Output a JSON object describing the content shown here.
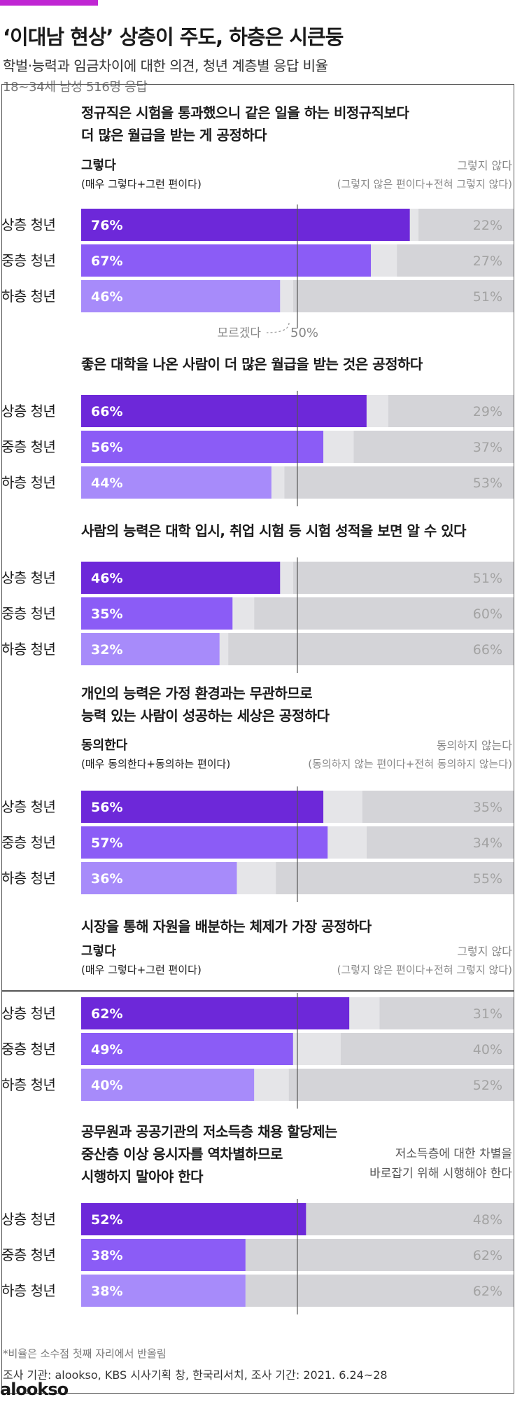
{
  "header": {
    "title": "‘이대남 현상’ 상층이 주도, 하층은 시큰둥",
    "subtitle": "학벌·능력과 임금차이에 대한 의견, 청년 계층별 응답 비율",
    "sample": "18~34세 남성 516명 응답"
  },
  "footer": {
    "note": "*비율은 소수점 첫째 자리에서 반올림",
    "source": "조사 기관: alookso, KBS 시사기획 창, 한국리서치, 조사 기간: 2021. 6.24~28",
    "logo": "alookso"
  },
  "colors": {
    "upper": "#6d28d9",
    "middle": "#8b5cf6",
    "lower": "#a78bfa",
    "unknown": "#e5e5e8",
    "disagree": "#d4d4d8",
    "disagree_text": "#a3a3a3",
    "marker": "#555555"
  },
  "chart_data": {
    "type": "bar",
    "orientation": "horizontal-stacked",
    "scale": [
      0,
      100
    ],
    "midline": 50,
    "categories": [
      "상층 청년",
      "중층 청년",
      "하층 청년"
    ],
    "panels": [
      {
        "question": [
          "정규직은 시험을 통과했으니 같은 일을 하는 비정규직보다",
          "더 많은 월급을 받는 게 공정하다"
        ],
        "left_label": [
          "그렇다",
          "(매우 그렇다+그런 편이다)"
        ],
        "right_label": [
          "그렇지 않다",
          "(그렇지 않은 편이다+전혀 그렇지 않다)"
        ],
        "agree": [
          76,
          67,
          46
        ],
        "disagree": [
          22,
          27,
          51
        ],
        "agree_labels": [
          "76%",
          "67%",
          "46%"
        ],
        "disagree_labels": [
          "22%",
          "27%",
          "51%"
        ],
        "annotation": {
          "unknown": "모르겠다",
          "midline": "50%"
        }
      },
      {
        "question": [
          "좋은 대학을 나온 사람이 더 많은 월급을 받는 것은 공정하다"
        ],
        "agree": [
          66,
          56,
          44
        ],
        "disagree": [
          29,
          37,
          53
        ],
        "agree_labels": [
          "66%",
          "56%",
          "44%"
        ],
        "disagree_labels": [
          "29%",
          "37%",
          "53%"
        ]
      },
      {
        "question": [
          "사람의 능력은 대학 입시, 취업 시험 등 시험 성적을 보면 알 수 있다"
        ],
        "agree": [
          46,
          35,
          32
        ],
        "disagree": [
          51,
          60,
          66
        ],
        "agree_labels": [
          "46%",
          "35%",
          "32%"
        ],
        "disagree_labels": [
          "51%",
          "60%",
          "66%"
        ]
      },
      {
        "question": [
          "개인의 능력은 가정 환경과는 무관하므로",
          "능력 있는 사람이 성공하는 세상은 공정하다"
        ],
        "left_label": [
          "동의한다",
          "(매우 동의한다+동의하는 편이다)"
        ],
        "right_label": [
          "동의하지 않는다",
          "(동의하지 않는 편이다+전혀 동의하지 않는다)"
        ],
        "agree": [
          56,
          57,
          36
        ],
        "disagree": [
          35,
          34,
          55
        ],
        "agree_labels": [
          "56%",
          "57%",
          "36%"
        ],
        "disagree_labels": [
          "35%",
          "34%",
          "55%"
        ]
      },
      {
        "question": [
          "시장을 통해 자원을 배분하는 체제가 가장 공정하다"
        ],
        "left_label": [
          "그렇다",
          "(매우 그렇다+그런 편이다)"
        ],
        "right_label": [
          "그렇지 않다",
          "(그렇지 않은 편이다+전혀 그렇지 않다)"
        ],
        "agree": [
          62,
          49,
          40
        ],
        "disagree": [
          31,
          40,
          52
        ],
        "agree_labels": [
          "62%",
          "49%",
          "40%"
        ],
        "disagree_labels": [
          "31%",
          "40%",
          "52%"
        ]
      },
      {
        "question": [
          "공무원과 공공기관의 저소득층 채용 할당제는",
          "중산층 이상 응시자를 역차별하므로",
          "시행하지 말아야 한다"
        ],
        "right_label": [
          "저소득층에 대한 차별을",
          "바로잡기 위해 시행해야 한다"
        ],
        "agree": [
          52,
          38,
          38
        ],
        "disagree": [
          48,
          62,
          62
        ],
        "agree_labels": [
          "52%",
          "38%",
          "38%"
        ],
        "disagree_labels": [
          "48%",
          "62%",
          "62%"
        ]
      }
    ]
  }
}
